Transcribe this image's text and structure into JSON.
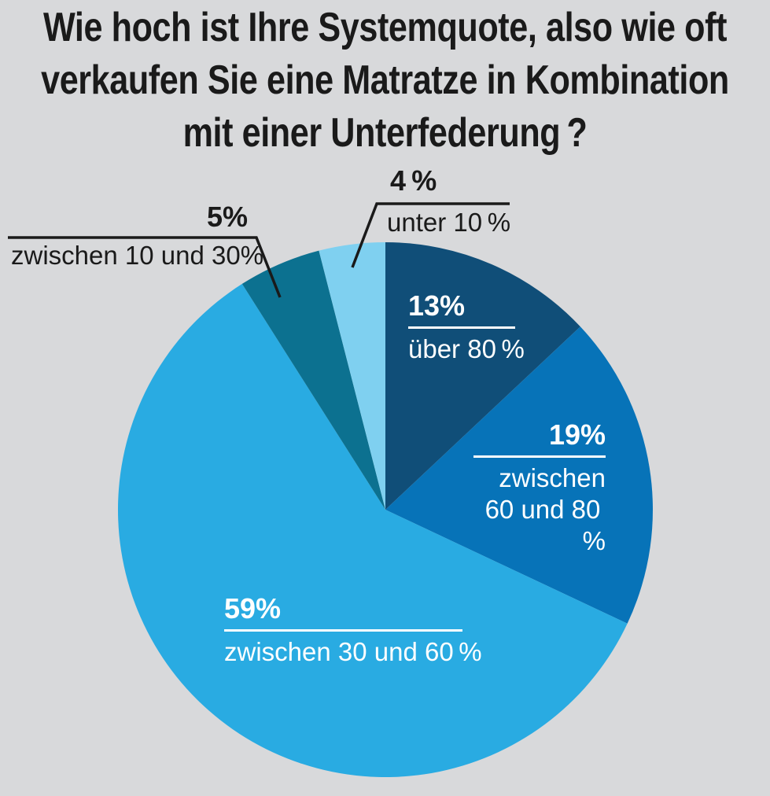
{
  "background_color": "#d8d9db",
  "text_color": "#1a1a1a",
  "title": {
    "line1": "Wie hoch ist Ihre Systemquote, also wie oft",
    "line2": "verkaufen Sie eine Matratze in Kombination",
    "line3": "mit einer Unterfederung ?",
    "full": "Wie hoch ist Ihre Systemquote, also wie oft verkaufen Sie eine Matratze in Kombination mit einer Unterfederung?"
  },
  "chart_data": {
    "type": "pie",
    "title": "Wie hoch ist Ihre Systemquote, also wie oft verkaufen Sie eine Matratze in Kombination mit einer Unterfederung?",
    "direction": "clockwise",
    "start_position": "12-o'clock",
    "start_angle_deg": 0,
    "legend_position": "labels-on-and-around-slices",
    "line_color": "#1a1a1a",
    "label_color_on_slice": "#ffffff",
    "label_color_outside": "#1a1a1a",
    "slices": [
      {
        "id": "ueber-80",
        "pct_label": "13%",
        "value": 13,
        "label": "über 80 %",
        "color": "#104e78"
      },
      {
        "id": "zwischen-60-80",
        "pct_label": "19%",
        "value": 19,
        "label": "zwischen 60 und 80 %",
        "label_line1": "zwischen",
        "label_line2": "60 und 80 %",
        "color": "#0773b8"
      },
      {
        "id": "zwischen-30-60",
        "pct_label": "59%",
        "value": 59,
        "label": "zwischen 30 und 60 %",
        "color": "#29abe2"
      },
      {
        "id": "zwischen-10-30",
        "pct_label": "5%",
        "value": 5,
        "label": "zwischen 10 und 30%",
        "color": "#0c7190"
      },
      {
        "id": "unter-10",
        "pct_label": "4 %",
        "value": 4,
        "label": "unter 10 %",
        "color": "#7fd0f0"
      }
    ]
  }
}
